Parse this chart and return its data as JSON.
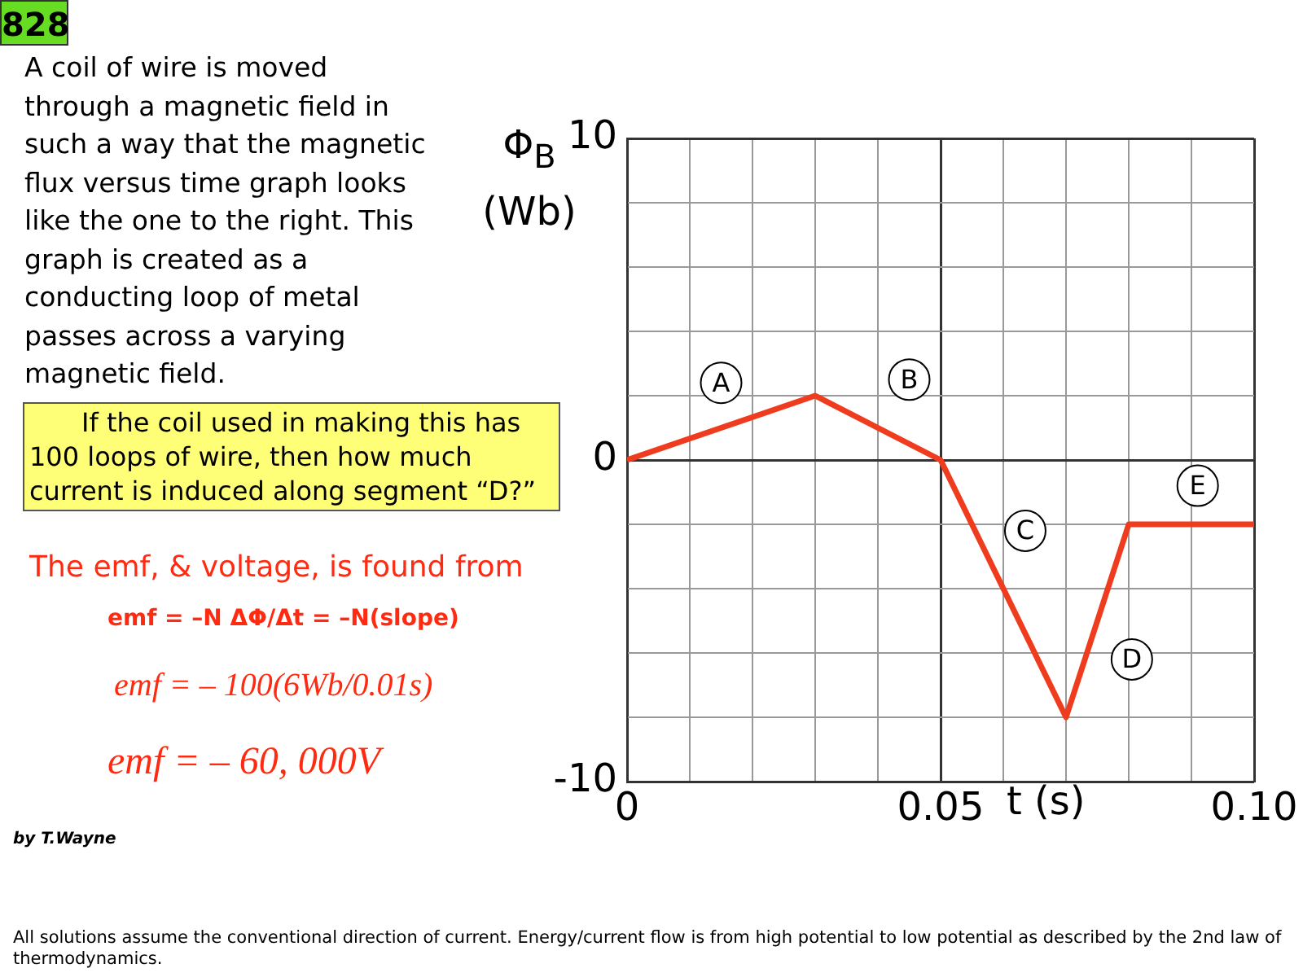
{
  "chart_data": {
    "type": "line",
    "x": [
      0,
      0.03,
      0.05,
      0.07,
      0.08,
      0.1
    ],
    "series": [
      {
        "color": "#f03c1e",
        "values": [
          0,
          2,
          0,
          -8,
          -2,
          -2
        ]
      }
    ],
    "xlabel": "t (s)",
    "ylabel": "Φ$_{B}$ (Wb)",
    "xlim": [
      0,
      0.1
    ],
    "ylim": [
      -10,
      10
    ],
    "xticks": [
      0,
      {
        "value": 0.01,
        "label": null
      },
      {
        "value": 0.02,
        "label": null
      },
      {
        "value": 0.03,
        "label": null
      },
      {
        "value": 0.04,
        "label": null
      },
      0.05,
      {
        "value": 0.06,
        "label": null
      },
      {
        "value": 0.07,
        "label": null
      },
      {
        "value": 0.08,
        "label": null
      },
      {
        "value": 0.09,
        "label": null
      },
      {
        "value": 0.1,
        "label": "0.10"
      }
    ],
    "yticks": [
      -10,
      {
        "value": -8,
        "label": null
      },
      {
        "value": -6,
        "label": null
      },
      {
        "value": -4,
        "label": null
      },
      {
        "value": -2,
        "label": null
      },
      0,
      {
        "value": 2,
        "label": null
      },
      {
        "value": 4,
        "label": null
      },
      {
        "value": 6,
        "label": null
      },
      {
        "value": 8,
        "label": null
      },
      10
    ],
    "grid": true,
    "legend": false,
    "marker": "none",
    "line_style": "solid",
    "annotations": [
      {
        "text": "A",
        "x": 0.015,
        "y": 2.4
      },
      {
        "text": "B",
        "x": 0.045,
        "y": 2.5
      },
      {
        "text": "C",
        "x": 0.0635,
        "y": -2.2
      },
      {
        "text": "D",
        "x": 0.0805,
        "y": -6.2
      },
      {
        "text": "E",
        "x": 0.091,
        "y": -0.8
      },
      "828",
      "A coil of wire is moved through a magnetic field in such a way that the magnetic flux versus time graph looks like the one to the right. This graph is created as a conducting loop of metal passes across a varying magnetic field.",
      "If the coil used in making this has 100 loops of wire, then how much current is induced along segment “D?”",
      "The emf, & voltage, is found from",
      "emf = –N ΔΦ/Δt = –N(slope)",
      "emf = – 100(6Wb/0.01s)",
      "emf = – 60, 000V",
      "by T.Wayne",
      "All solutions assume the conventional direction of current. Energy/current flow is from high potential to low potential as described by the 2nd law of thermodynamics."
    ]
  }
}
